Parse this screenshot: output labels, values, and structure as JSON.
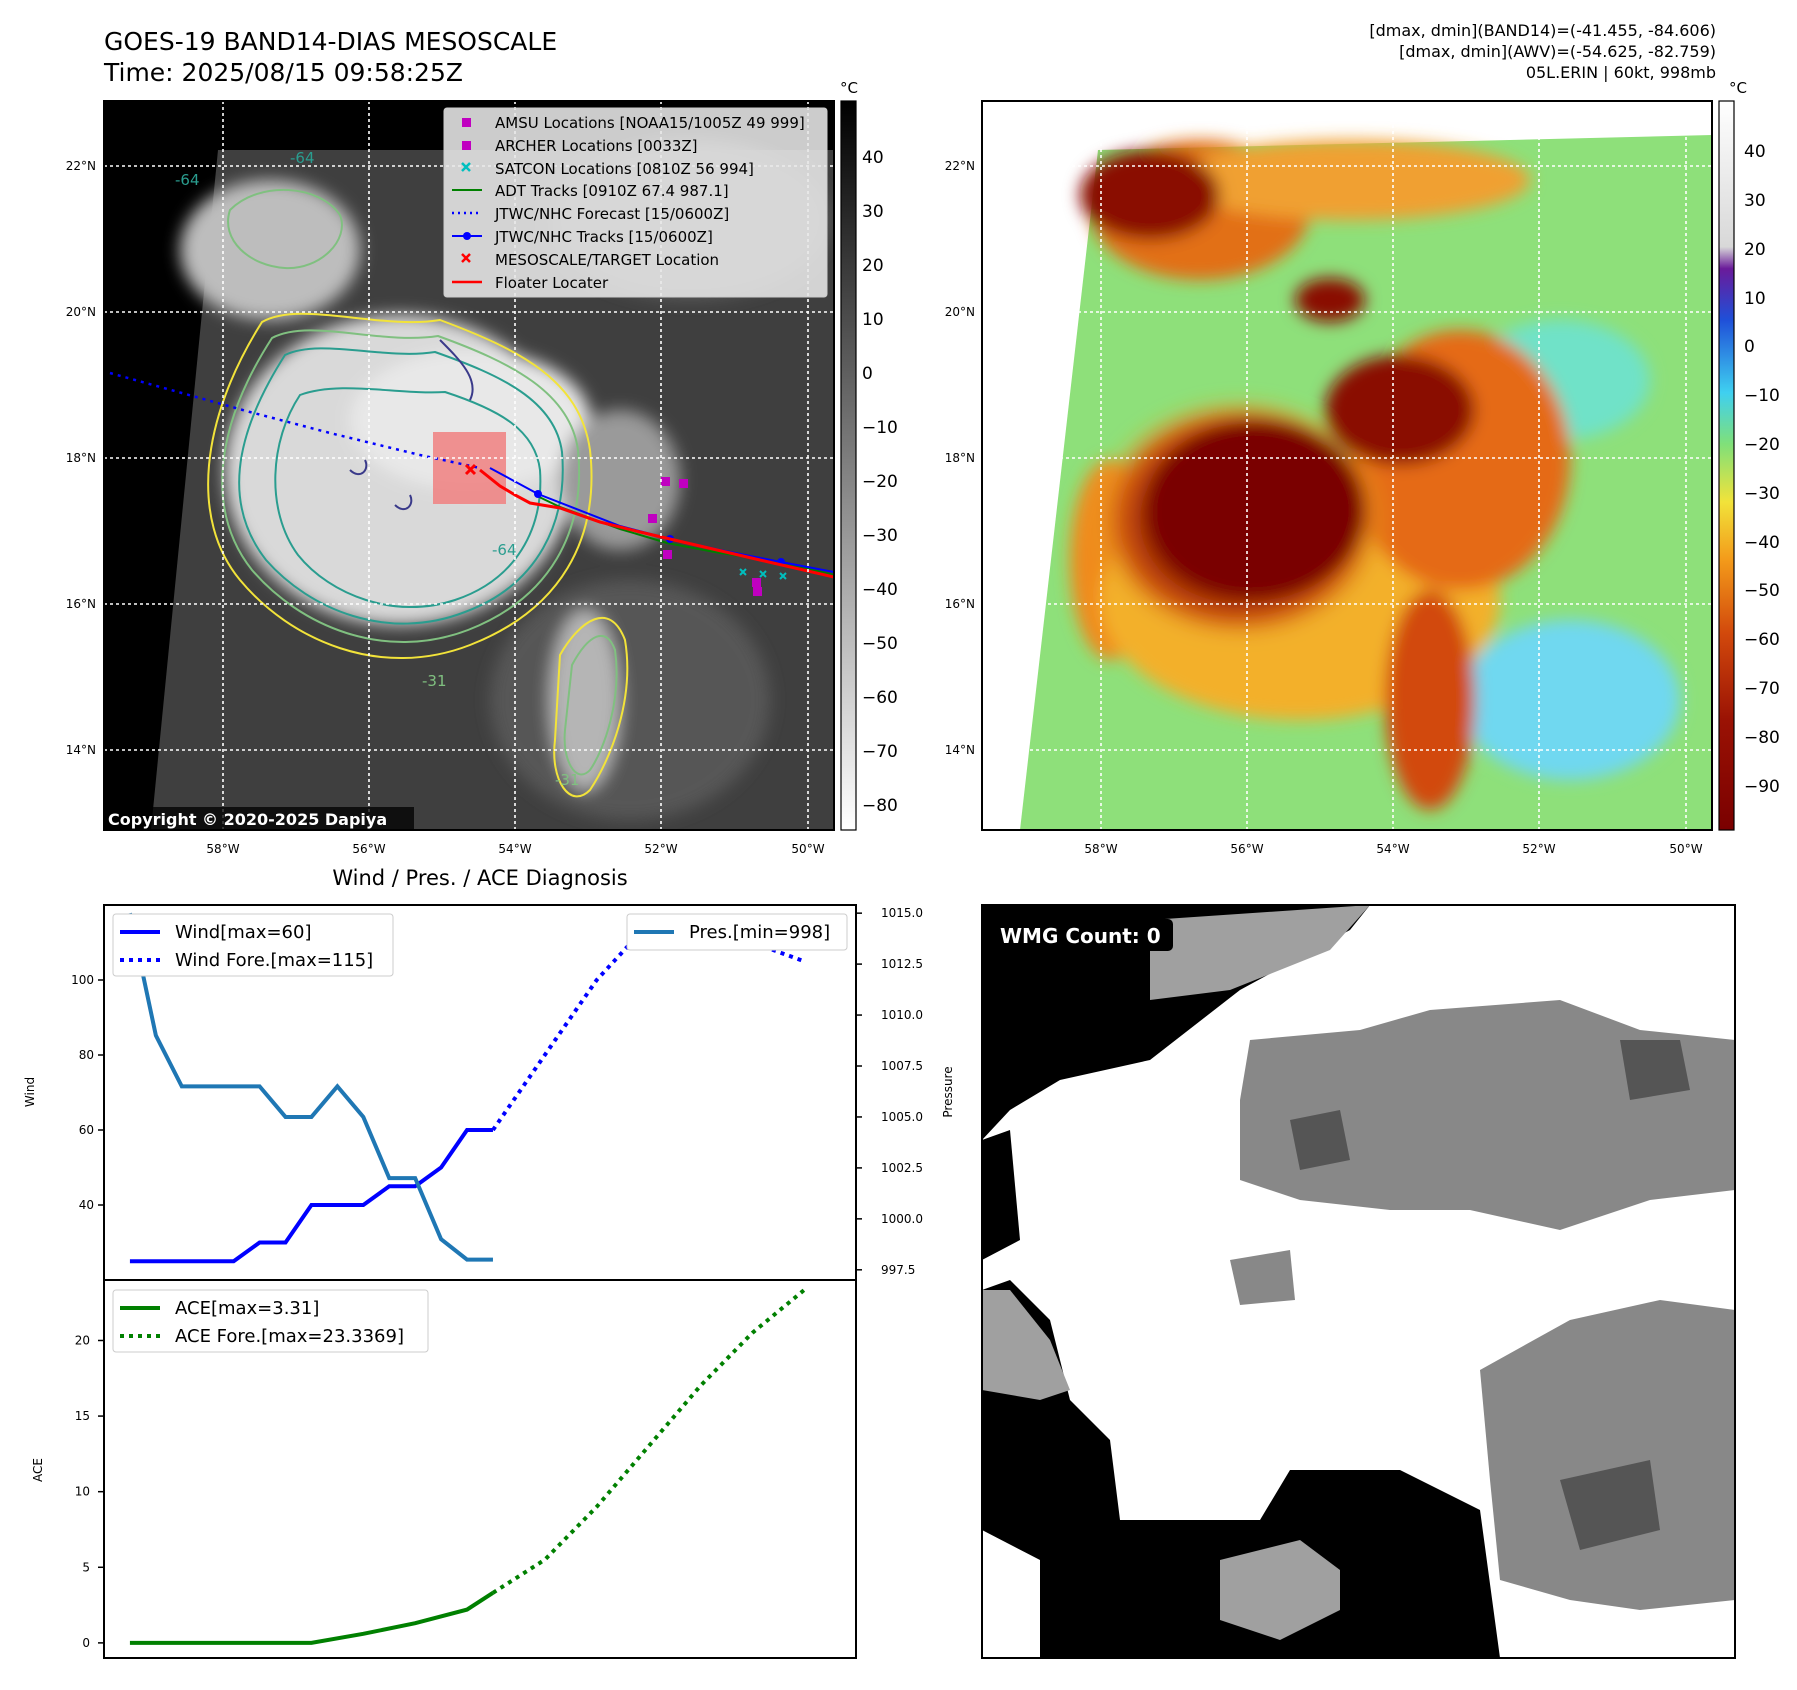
{
  "header": {
    "title_line1": "GOES-19 BAND14-DIAS MESOSCALE",
    "title_line2": "Time: 2025/08/15 09:58:25Z",
    "info_line1": "[dmax, dmin](BAND14)=(-41.455, -84.606)",
    "info_line2": "[dmax, dmin](AWV)=(-54.625, -82.759)",
    "info_line3": "05L.ERIN | 60kt, 998mb"
  },
  "maps": {
    "lat_labels": [
      "22°N",
      "20°N",
      "18°N",
      "16°N",
      "14°N"
    ],
    "lon_labels": [
      "58°W",
      "56°W",
      "54°W",
      "52°W",
      "50°W"
    ],
    "copyright": "Copyright © 2020-2025 Dapiya",
    "contour_labels": [
      "-64",
      "-64",
      "-64",
      "-31",
      "-31"
    ],
    "colorbar_unit": "°C",
    "colorbar1_ticks": [
      "40",
      "30",
      "20",
      "10",
      "0",
      "−10",
      "−20",
      "−30",
      "−40",
      "−50",
      "−60",
      "−70",
      "−80"
    ],
    "colorbar2_ticks": [
      "40",
      "30",
      "20",
      "10",
      "0",
      "−10",
      "−20",
      "−30",
      "−40",
      "−50",
      "−60",
      "−70",
      "−80",
      "−90"
    ],
    "legend": [
      {
        "label": "AMSU Locations [NOAA15/1005Z 49 999]",
        "color": "#c000c0",
        "marker": "square"
      },
      {
        "label": "ARCHER Locations [0033Z]",
        "color": "#c000c0",
        "marker": "square"
      },
      {
        "label": "SATCON Locations [0810Z 56 994]",
        "color": "#00bfbf",
        "marker": "x"
      },
      {
        "label": "ADT Tracks [0910Z 67.4 987.1]",
        "color": "#008000",
        "marker": "line"
      },
      {
        "label": "JTWC/NHC Forecast [15/0600Z]",
        "color": "#0000ff",
        "marker": "dotted"
      },
      {
        "label": "JTWC/NHC Tracks [15/0600Z]",
        "color": "#0000ff",
        "marker": "line-dot"
      },
      {
        "label": "MESOSCALE/TARGET Location",
        "color": "#ff0000",
        "marker": "x"
      },
      {
        "label": "Floater Locater",
        "color": "#ff0000",
        "marker": "line"
      }
    ]
  },
  "wmg": {
    "label": "WMG Count: 0"
  },
  "chart_data": [
    {
      "type": "line",
      "title": "Wind / Pres. / ACE Diagnosis",
      "ylabel": "Wind",
      "y2label": "Pressure",
      "ylim": [
        20,
        120
      ],
      "y2lim": [
        997.0,
        1015.4
      ],
      "yticks": [
        "40",
        "60",
        "80",
        "100"
      ],
      "y2ticks": [
        "997.5",
        "1000.0",
        "1002.5",
        "1005.0",
        "1007.5",
        "1010.0",
        "1012.5",
        "1015.0"
      ],
      "series": [
        {
          "name": "Wind[max=60]",
          "axis": "left",
          "color": "#0000ff",
          "style": "solid",
          "x": [
            0,
            3,
            4,
            5,
            6,
            7,
            8,
            9,
            10,
            11,
            12,
            13,
            14
          ],
          "values": [
            25,
            25,
            25,
            30,
            30,
            40,
            40,
            40,
            45,
            45,
            50,
            60,
            60
          ]
        },
        {
          "name": "Wind Fore.[max=115]",
          "axis": "left",
          "color": "#0000ff",
          "style": "dotted",
          "x": [
            14,
            16,
            18,
            20,
            22,
            24,
            26
          ],
          "values": [
            60,
            80,
            100,
            115,
            115,
            110,
            105
          ]
        },
        {
          "name": "Pres.[min=998]",
          "axis": "right",
          "color": "#1f77b4",
          "style": "solid",
          "x": [
            0,
            1,
            2,
            3,
            4,
            5,
            6,
            7,
            8,
            9,
            10,
            11,
            12,
            13,
            14
          ],
          "values": [
            1015.0,
            1009.0,
            1006.5,
            1006.5,
            1006.5,
            1006.5,
            1005.0,
            1005.0,
            1006.5,
            1005.0,
            1002.0,
            1002.0,
            999.0,
            998.0,
            998.0
          ]
        }
      ]
    },
    {
      "type": "line",
      "ylabel": "ACE",
      "ylim": [
        -1,
        24
      ],
      "yticks": [
        "0",
        "5",
        "10",
        "15",
        "20"
      ],
      "series": [
        {
          "name": "ACE[max=3.31]",
          "color": "#008000",
          "style": "solid",
          "x": [
            0,
            7,
            9,
            11,
            13,
            14
          ],
          "values": [
            0,
            0,
            0.6,
            1.3,
            2.2,
            3.31
          ]
        },
        {
          "name": "ACE Fore.[max=23.3369]",
          "color": "#008000",
          "style": "dotted",
          "x": [
            14,
            16,
            18,
            20,
            22,
            24,
            26
          ],
          "values": [
            3.31,
            5.5,
            9.0,
            13.0,
            17.0,
            20.5,
            23.3369
          ]
        }
      ]
    }
  ]
}
